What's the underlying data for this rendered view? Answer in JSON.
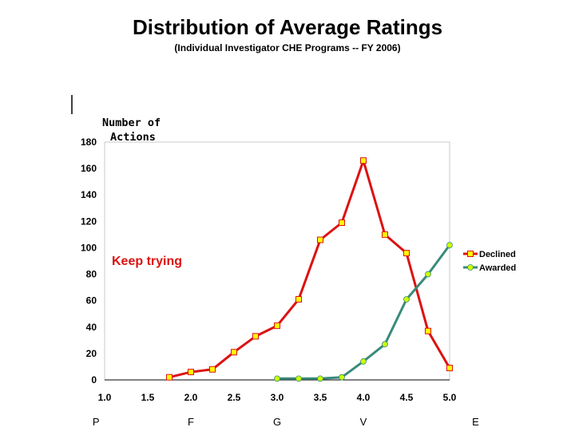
{
  "chart_data": {
    "type": "line",
    "title": "Distribution of Average Ratings",
    "subtitle": "(Individual Investigator CHE Programs -- FY 2006)",
    "ylabel": "Number of Actions",
    "ylabel_lines": [
      "Number of",
      "Actions"
    ],
    "xlabel": "",
    "xlim": [
      1.0,
      5.0
    ],
    "ylim": [
      0,
      180
    ],
    "x_ticks": [
      "1.0",
      "1.5",
      "2.0",
      "2.5",
      "3.0",
      "3.5",
      "4.0",
      "4.5",
      "5.0"
    ],
    "y_ticks": [
      "0",
      "20",
      "40",
      "60",
      "80",
      "100",
      "120",
      "140",
      "160",
      "180"
    ],
    "grid": false,
    "legend_position": "right",
    "series": [
      {
        "name": "Declined",
        "color": "#dd1111",
        "marker_color": "#ffff00",
        "marker": "square",
        "x": [
          1.75,
          2.0,
          2.25,
          2.5,
          2.75,
          3.0,
          3.25,
          3.5,
          3.75,
          4.0,
          4.25,
          4.5,
          4.75,
          5.0
        ],
        "values": [
          2,
          6,
          8,
          21,
          33,
          41,
          61,
          106,
          119,
          166,
          110,
          96,
          37,
          9
        ]
      },
      {
        "name": "Awarded",
        "color": "#3a8a7a",
        "marker_color": "#ccff00",
        "marker": "circle",
        "x": [
          3.0,
          3.25,
          3.5,
          3.75,
          4.0,
          4.25,
          4.5,
          4.75,
          5.0
        ],
        "values": [
          1,
          1,
          1,
          2,
          14,
          27,
          61,
          80,
          102
        ]
      }
    ],
    "annotations": [
      {
        "text": "Keep trying",
        "color": "#dd1111"
      }
    ],
    "grade_labels": [
      {
        "text": "P",
        "x": 0.9
      },
      {
        "text": "F",
        "x": 2.0
      },
      {
        "text": "G",
        "x": 3.0
      },
      {
        "text": "V",
        "x": 4.0
      },
      {
        "text": "E",
        "x": 5.3
      }
    ]
  }
}
